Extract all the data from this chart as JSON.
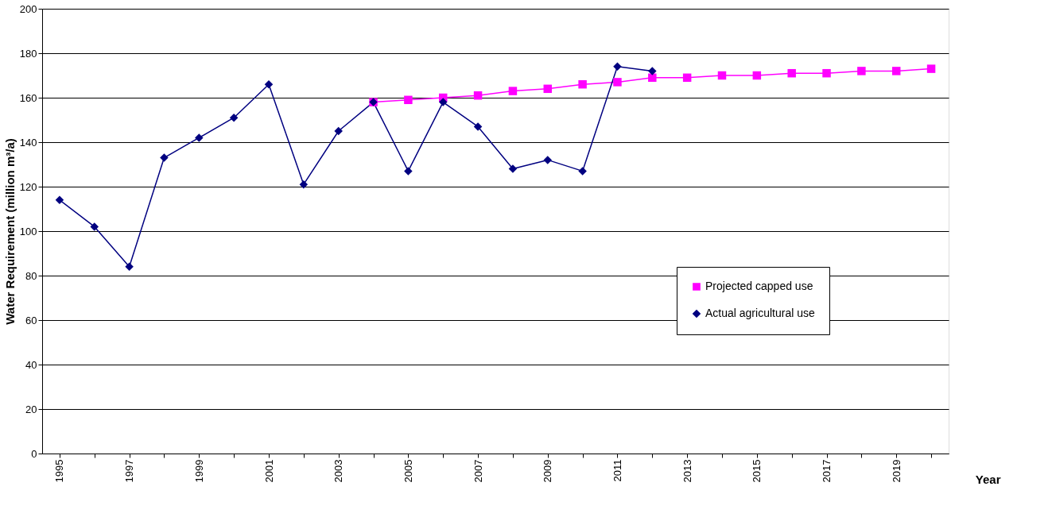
{
  "chart_data": {
    "type": "line",
    "xlabel": "Year",
    "ylabel": "Water Requirement (million m³/a)",
    "categories": [
      "1995",
      null,
      "1997",
      null,
      "1999",
      null,
      "2001",
      null,
      "2003",
      null,
      "2005",
      null,
      "2007",
      null,
      "2009",
      null,
      "2011",
      null,
      "2013",
      null,
      "2015",
      null,
      "2017",
      null,
      "2019",
      null
    ],
    "series": [
      {
        "name": "Projected capped use",
        "color": "#ff00ff",
        "marker": "square",
        "values": [
          null,
          null,
          null,
          null,
          null,
          null,
          null,
          null,
          null,
          158,
          159,
          160,
          161,
          163,
          164,
          166,
          167,
          169,
          169,
          170,
          170,
          171,
          171,
          172,
          172,
          173
        ]
      },
      {
        "name": "Actual agricultural use",
        "color": "#000080",
        "marker": "diamond",
        "values": [
          114,
          102,
          84,
          133,
          142,
          151,
          166,
          121,
          145,
          158,
          127,
          158,
          147,
          128,
          132,
          127,
          174,
          172,
          null,
          null,
          null,
          null,
          null,
          null,
          null,
          null
        ]
      }
    ],
    "ylim": [
      0,
      200
    ],
    "yticks": [
      0,
      20,
      40,
      60,
      80,
      100,
      120,
      140,
      160,
      180,
      200
    ],
    "grid": "y",
    "legend": "bottom right",
    "line_style": "solid"
  }
}
